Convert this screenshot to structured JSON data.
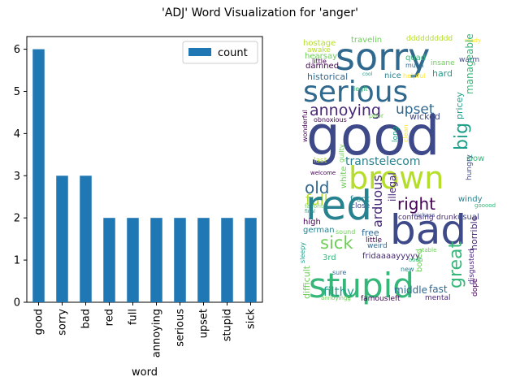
{
  "figure": {
    "title": "'ADJ' Word Visualization for 'anger'"
  },
  "colors": {
    "bar": "#1f77b4",
    "axis": "#000000",
    "wordcloud": [
      "#440154",
      "#482878",
      "#3e4989",
      "#31688e",
      "#26828e",
      "#1f9e89",
      "#35b779",
      "#6ece58",
      "#b5de2b",
      "#fde725"
    ]
  },
  "chart_data": [
    {
      "type": "bar",
      "categories": [
        "good",
        "sorry",
        "bad",
        "red",
        "full",
        "annoying",
        "serious",
        "upset",
        "stupid",
        "sick"
      ],
      "series": [
        {
          "name": "count",
          "values": [
            6,
            3,
            3,
            2,
            2,
            2,
            2,
            2,
            2,
            2
          ]
        }
      ],
      "xlabel": "word",
      "ylabel": "",
      "ylim": [
        0,
        6.3
      ],
      "yticks": [
        0,
        1,
        2,
        3,
        4,
        5,
        6
      ],
      "grid": false,
      "legend": "top-right"
    },
    {
      "type": "wordcloud",
      "words": [
        "hostage",
        "travelin",
        "dddddddddd",
        "ready",
        "sorry",
        "awake",
        "hearsay",
        "quad",
        "insane",
        "little",
        "damned",
        "warm",
        "much",
        "cool",
        "nice",
        "helpful",
        "hard",
        "historical",
        "serious",
        "legit",
        "annoying",
        "upset",
        "obnoxious",
        "poor",
        "wicked",
        "pricey",
        "manageable",
        "wonderful",
        "good",
        "guilty",
        "long",
        "clean",
        "big",
        "last",
        "brown",
        "slow",
        "transtelecom",
        "welcome",
        "old",
        "white",
        "illegal",
        "hungry",
        "full",
        "front",
        "right",
        "favorite",
        "close",
        "arduous",
        "windy",
        "red",
        "gooood",
        "final",
        "bad",
        "high",
        "confusing",
        "usual",
        "german",
        "sound",
        "free",
        "sick",
        "little",
        "weird",
        "horrible",
        "great",
        "fridaaaayyyyy",
        "3rd",
        "difficult",
        "stupid",
        "sure",
        "bored",
        "new",
        "disgusted",
        "sleepy",
        "filthy",
        "middle",
        "fast",
        "dope",
        "annoyingg",
        "famous",
        "left",
        "mental",
        "kickass",
        "drunk",
        "stable",
        "oooh"
      ]
    }
  ]
}
